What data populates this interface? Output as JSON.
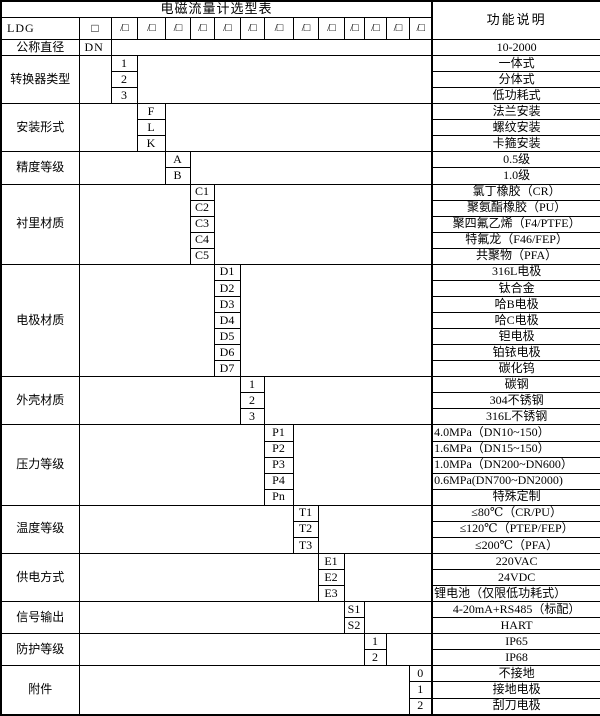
{
  "title": "电磁流量计选型表",
  "function_header": "功能说明",
  "model_row": {
    "prefix": "LDG",
    "box": "□",
    "slot": "/□",
    "slot_count": 13
  },
  "diameter_row": {
    "label": "公称直径",
    "code": "DN",
    "function": "10-2000"
  },
  "groups": [
    {
      "label": "转换器类型",
      "col": 1,
      "options": [
        {
          "code": "1",
          "function": "一体式"
        },
        {
          "code": "2",
          "function": "分体式"
        },
        {
          "code": "3",
          "function": "低功耗式"
        }
      ]
    },
    {
      "label": "安装形式",
      "col": 2,
      "options": [
        {
          "code": "F",
          "function": "法兰安装"
        },
        {
          "code": "L",
          "function": "螺纹安装"
        },
        {
          "code": "K",
          "function": "卡箍安装"
        }
      ]
    },
    {
      "label": "精度等级",
      "col": 3,
      "options": [
        {
          "code": "A",
          "function": "0.5级"
        },
        {
          "code": "B",
          "function": "1.0级"
        }
      ]
    },
    {
      "label": "衬里材质",
      "col": 4,
      "options": [
        {
          "code": "C1",
          "function": "氯丁橡胶（CR）"
        },
        {
          "code": "C2",
          "function": "聚氨酯橡胶（PU）"
        },
        {
          "code": "C3",
          "function": "聚四氟乙烯（F4/PTFE）"
        },
        {
          "code": "C4",
          "function": "特氟龙（F46/FEP）"
        },
        {
          "code": "C5",
          "function": "共聚物（PFA）"
        }
      ]
    },
    {
      "label": "电极材质",
      "col": 5,
      "options": [
        {
          "code": "D1",
          "function": "316L电极"
        },
        {
          "code": "D2",
          "function": "钛合金"
        },
        {
          "code": "D3",
          "function": "哈B电极"
        },
        {
          "code": "D4",
          "function": "哈C电极"
        },
        {
          "code": "D5",
          "function": "钽电极"
        },
        {
          "code": "D6",
          "function": "铂铱电极"
        },
        {
          "code": "D7",
          "function": "碳化钨"
        }
      ]
    },
    {
      "label": "外壳材质",
      "col": 6,
      "options": [
        {
          "code": "1",
          "function": "碳钢"
        },
        {
          "code": "2",
          "function": "304不锈钢"
        },
        {
          "code": "3",
          "function": "316L不锈钢"
        }
      ]
    },
    {
      "label": "压力等级",
      "col": 7,
      "options": [
        {
          "code": "P1",
          "function": "4.0MPa（DN10~150）",
          "align": "left"
        },
        {
          "code": "P2",
          "function": "1.6MPa（DN15~150）",
          "align": "left"
        },
        {
          "code": "P3",
          "function": "1.0MPa（DN200~DN600）",
          "align": "left"
        },
        {
          "code": "P4",
          "function": "0.6MPa(DN700~DN2000)",
          "align": "left"
        },
        {
          "code": "Pn",
          "function": "特殊定制"
        }
      ]
    },
    {
      "label": "温度等级",
      "col": 8,
      "options": [
        {
          "code": "T1",
          "function": "≤80℃（CR/PU）"
        },
        {
          "code": "T2",
          "function": "≤120℃（PTEP/FEP）"
        },
        {
          "code": "T3",
          "function": "≤200℃（PFA）"
        }
      ]
    },
    {
      "label": "供电方式",
      "col": 9,
      "options": [
        {
          "code": "E1",
          "function": "220VAC"
        },
        {
          "code": "E2",
          "function": "24VDC"
        },
        {
          "code": "E3",
          "function": "锂电池（仅限低功耗式）",
          "align": "left"
        }
      ]
    },
    {
      "label": "信号输出",
      "col": 10,
      "options": [
        {
          "code": "S1",
          "function": "4-20mA+RS485（标配）"
        },
        {
          "code": "S2",
          "function": "HART"
        }
      ]
    },
    {
      "label": "防护等级",
      "col": 11,
      "options": [
        {
          "code": "1",
          "function": "IP65"
        },
        {
          "code": "2",
          "function": "IP68"
        }
      ]
    },
    {
      "label": "附件",
      "col": 13,
      "options": [
        {
          "code": "0",
          "function": "不接地"
        },
        {
          "code": "1",
          "function": "接地电极"
        },
        {
          "code": "2",
          "function": "刮刀电极"
        }
      ]
    }
  ]
}
